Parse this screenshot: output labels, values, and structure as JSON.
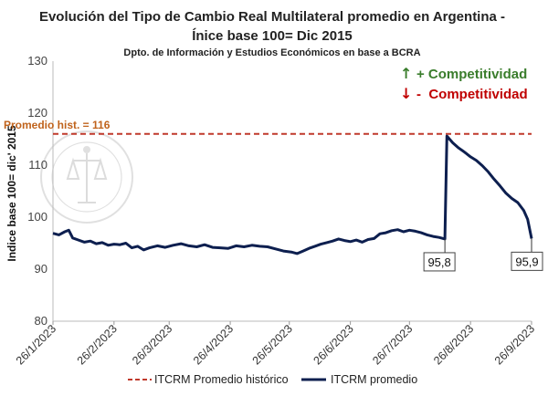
{
  "chart_data": {
    "type": "line",
    "title": "Evolución del Tipo de Cambio Real Multilateral promedio en Argentina -",
    "title_line2": "Ínice base 100= Dic 2015",
    "subtitle": "Dpto. de Información y Estudios Económicos en base a BCRA",
    "ylabel": "Indice base 100= dic' 2015",
    "ylim": [
      80,
      130
    ],
    "yticks": [
      80,
      90,
      100,
      110,
      120,
      130
    ],
    "x_range": [
      "2023-01-26",
      "2023-09-26"
    ],
    "x_tick_labels": [
      {
        "date": "2023-01-26",
        "label": "26/1/2023"
      },
      {
        "date": "2023-02-26",
        "label": "26/2/2023"
      },
      {
        "date": "2023-03-26",
        "label": "26/3/2023"
      },
      {
        "date": "2023-04-26",
        "label": "26/4/2023"
      },
      {
        "date": "2023-05-26",
        "label": "26/5/2023"
      },
      {
        "date": "2023-06-26",
        "label": "26/6/2023"
      },
      {
        "date": "2023-07-26",
        "label": "26/7/2023"
      },
      {
        "date": "2023-08-26",
        "label": "26/8/2023"
      },
      {
        "date": "2023-09-26",
        "label": "26/9/2023"
      }
    ],
    "grid": false,
    "legend_position": "bottom",
    "series": [
      {
        "name": "ITCRM promedio",
        "color": "#0d1f4f",
        "style": "solid",
        "points": [
          [
            "2023-01-26",
            96.9
          ],
          [
            "2023-01-29",
            96.6
          ],
          [
            "2023-02-01",
            97.2
          ],
          [
            "2023-02-03",
            97.5
          ],
          [
            "2023-02-05",
            96.0
          ],
          [
            "2023-02-08",
            95.6
          ],
          [
            "2023-02-11",
            95.2
          ],
          [
            "2023-02-14",
            95.4
          ],
          [
            "2023-02-17",
            94.9
          ],
          [
            "2023-02-20",
            95.1
          ],
          [
            "2023-02-23",
            94.6
          ],
          [
            "2023-02-26",
            94.8
          ],
          [
            "2023-03-01",
            94.7
          ],
          [
            "2023-03-04",
            95.0
          ],
          [
            "2023-03-07",
            94.1
          ],
          [
            "2023-03-10",
            94.4
          ],
          [
            "2023-03-13",
            93.7
          ],
          [
            "2023-03-16",
            94.1
          ],
          [
            "2023-03-20",
            94.5
          ],
          [
            "2023-03-24",
            94.2
          ],
          [
            "2023-03-28",
            94.6
          ],
          [
            "2023-04-01",
            94.9
          ],
          [
            "2023-04-05",
            94.5
          ],
          [
            "2023-04-09",
            94.3
          ],
          [
            "2023-04-13",
            94.7
          ],
          [
            "2023-04-17",
            94.2
          ],
          [
            "2023-04-21",
            94.1
          ],
          [
            "2023-04-25",
            94.0
          ],
          [
            "2023-04-29",
            94.5
          ],
          [
            "2023-05-03",
            94.3
          ],
          [
            "2023-05-07",
            94.6
          ],
          [
            "2023-05-11",
            94.4
          ],
          [
            "2023-05-15",
            94.3
          ],
          [
            "2023-05-19",
            93.9
          ],
          [
            "2023-05-23",
            93.5
          ],
          [
            "2023-05-27",
            93.3
          ],
          [
            "2023-05-30",
            93.0
          ],
          [
            "2023-06-02",
            93.5
          ],
          [
            "2023-06-05",
            94.0
          ],
          [
            "2023-06-08",
            94.4
          ],
          [
            "2023-06-11",
            94.8
          ],
          [
            "2023-06-14",
            95.1
          ],
          [
            "2023-06-17",
            95.4
          ],
          [
            "2023-06-20",
            95.8
          ],
          [
            "2023-06-23",
            95.5
          ],
          [
            "2023-06-26",
            95.3
          ],
          [
            "2023-06-29",
            95.6
          ],
          [
            "2023-07-02",
            95.2
          ],
          [
            "2023-07-05",
            95.7
          ],
          [
            "2023-07-08",
            95.9
          ],
          [
            "2023-07-11",
            96.8
          ],
          [
            "2023-07-14",
            97.0
          ],
          [
            "2023-07-17",
            97.4
          ],
          [
            "2023-07-20",
            97.6
          ],
          [
            "2023-07-23",
            97.2
          ],
          [
            "2023-07-26",
            97.5
          ],
          [
            "2023-07-29",
            97.3
          ],
          [
            "2023-08-01",
            97.0
          ],
          [
            "2023-08-04",
            96.6
          ],
          [
            "2023-08-07",
            96.3
          ],
          [
            "2023-08-10",
            96.1
          ],
          [
            "2023-08-13",
            95.8
          ],
          [
            "2023-08-14",
            115.6
          ],
          [
            "2023-08-17",
            114.3
          ],
          [
            "2023-08-20",
            113.3
          ],
          [
            "2023-08-23",
            112.5
          ],
          [
            "2023-08-26",
            111.6
          ],
          [
            "2023-08-29",
            110.9
          ],
          [
            "2023-09-01",
            109.9
          ],
          [
            "2023-09-04",
            108.7
          ],
          [
            "2023-09-07",
            107.3
          ],
          [
            "2023-09-10",
            106.0
          ],
          [
            "2023-09-13",
            104.6
          ],
          [
            "2023-09-16",
            103.6
          ],
          [
            "2023-09-19",
            102.8
          ],
          [
            "2023-09-22",
            101.3
          ],
          [
            "2023-09-24",
            99.6
          ],
          [
            "2023-09-26",
            95.9
          ]
        ]
      },
      {
        "name": "ITCRM Promedio histórico",
        "color": "#c0392b",
        "style": "dashed",
        "value": 116
      }
    ],
    "annotations": [
      {
        "text": "Promedio hist. = 116",
        "color": "#c0631c"
      },
      {
        "text": "95,8",
        "date": "2023-08-13",
        "value": 95.8
      },
      {
        "text": "95,9",
        "date": "2023-09-26",
        "value": 95.9
      }
    ],
    "competitiveness_legend": [
      {
        "arrow": "↑",
        "text": "+ Competitividad",
        "color": "#3a7d2c"
      },
      {
        "arrow": "↓",
        "text": "-  Competitividad",
        "color": "#c00000"
      }
    ],
    "watermark_text": "BOLSA DE COMERCIO DE ROSARIO"
  }
}
